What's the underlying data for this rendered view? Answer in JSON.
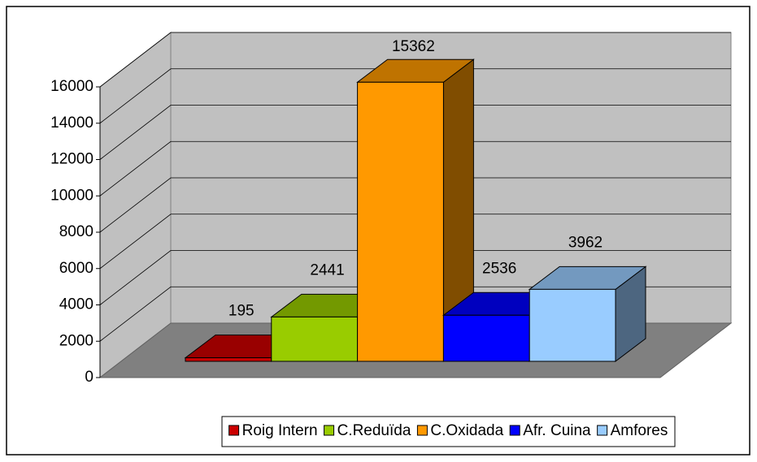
{
  "chart_data": {
    "type": "bar3d",
    "series": [
      {
        "name": "Roig Intern",
        "color": "#cc0000",
        "values": [
          195
        ]
      },
      {
        "name": "C.Reduïda",
        "color": "#99cc00",
        "values": [
          2441
        ]
      },
      {
        "name": "C.Oxidada",
        "color": "#ff9900",
        "values": [
          15362
        ]
      },
      {
        "name": "Afr. Cuina",
        "color": "#0000ff",
        "values": [
          2536
        ]
      },
      {
        "name": "Amfores",
        "color": "#99ccff",
        "values": [
          3962
        ]
      }
    ],
    "ylim": [
      0,
      16000
    ],
    "yticks": [
      0,
      2000,
      4000,
      6000,
      8000,
      10000,
      12000,
      14000,
      16000
    ],
    "grid": true,
    "legend": "bottom"
  }
}
